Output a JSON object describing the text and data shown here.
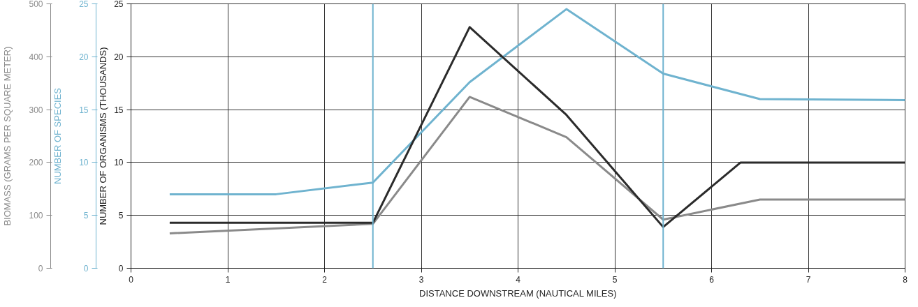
{
  "chart_data": {
    "type": "line",
    "xlabel": "DISTANCE DOWNSTREAM (NAUTICAL MILES)",
    "ylabel": "NUMBER OF ORGANISMS (THOUSANDS)",
    "y3label": "NUMBER OF SPECIES",
    "y2label": "BIOMASS (GRAMS PER SQUARE METER)",
    "xlim": [
      0,
      8
    ],
    "xticks": [
      0,
      1,
      2,
      3,
      4,
      5,
      6,
      7,
      8
    ],
    "ylim": [
      0,
      25
    ],
    "yticks": [
      0,
      5,
      10,
      15,
      20,
      25
    ],
    "y3lim": [
      0,
      25
    ],
    "y3ticks": [
      0,
      5,
      10,
      15,
      20,
      25
    ],
    "y2lim": [
      0,
      500
    ],
    "y2ticks": [
      0,
      100,
      200,
      300,
      400,
      500
    ],
    "grid": true,
    "marker": "none",
    "line_style": "solid",
    "ref_lines": [
      {
        "axis": "x",
        "value": 2.5,
        "color": "#6fb3cf"
      },
      {
        "axis": "x",
        "value": 5.5,
        "color": "#6fb3cf"
      }
    ],
    "series": [
      {
        "color": "#6fb3cf",
        "axis": "y3",
        "x": [
          0.4,
          1.5,
          2.5,
          3.5,
          4.5,
          5.5,
          6.5,
          8
        ],
        "values": [
          7.0,
          7.0,
          8.1,
          17.6,
          24.5,
          18.4,
          16.0,
          15.9
        ]
      },
      {
        "color": "#8a8a8a",
        "axis": "y2",
        "x": [
          0.4,
          2.5,
          3.5,
          4.5,
          5.5,
          6.5,
          8
        ],
        "values": [
          66,
          84,
          324,
          248,
          92,
          130,
          130
        ]
      },
      {
        "color": "#2b2b2b",
        "x": [
          0.4,
          2.5,
          3.5,
          4.5,
          5.5,
          6.3,
          8
        ],
        "values": [
          4.3,
          4.3,
          22.8,
          14.5,
          3.9,
          10.0,
          10.0
        ]
      }
    ]
  }
}
